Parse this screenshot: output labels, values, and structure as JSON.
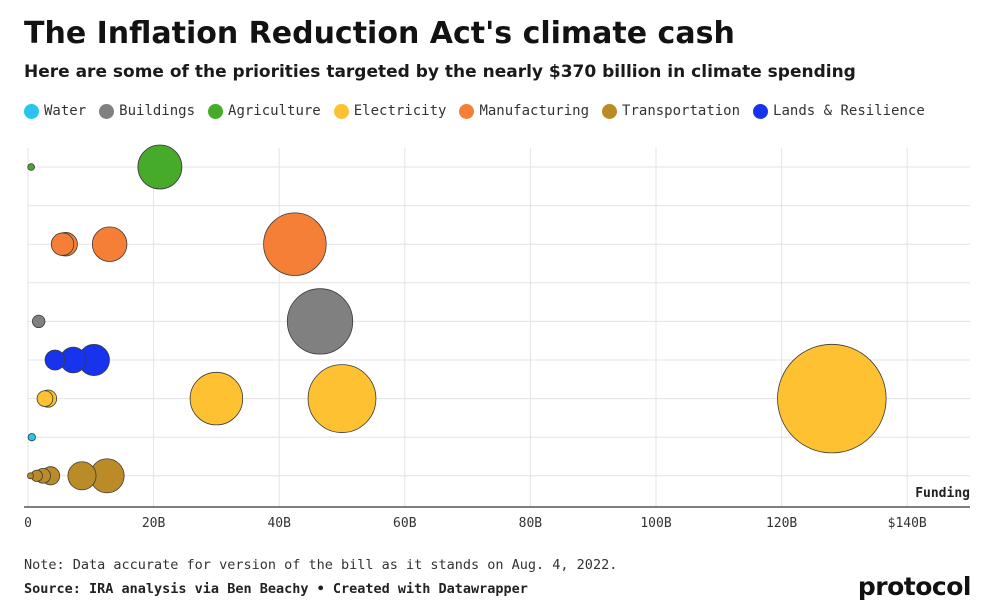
{
  "header": {
    "title": "The Inflation Reduction Act's climate cash",
    "subtitle": "Here are some of the priorities targeted by the nearly $370 billion in climate spending"
  },
  "footer": {
    "note": "Note: Data accurate for version of the bill as it stands on Aug. 4, 2022.",
    "source": "Source: IRA analysis via Ben Beachy • Created with Datawrapper",
    "brand": "protocol"
  },
  "colors": {
    "Water": "#29c4ef",
    "Buildings": "#808080",
    "Agriculture": "#46ab2b",
    "Electricity": "#fdc131",
    "Manufacturing": "#f57f37",
    "Transportation": "#bb8b27",
    "Lands & Resilience": "#1733ee"
  },
  "chart_data": {
    "type": "scatter",
    "subtype": "bubble",
    "title": "The Inflation Reduction Act's climate cash",
    "xlabel": "Funding",
    "ylabel": "",
    "xlim": [
      0,
      150
    ],
    "x_unit": "billion USD",
    "xticks": [
      {
        "value": 0,
        "label": "0"
      },
      {
        "value": 20,
        "label": "20B"
      },
      {
        "value": 40,
        "label": "40B"
      },
      {
        "value": 60,
        "label": "60B"
      },
      {
        "value": 80,
        "label": "80B"
      },
      {
        "value": 100,
        "label": "100B"
      },
      {
        "value": 120,
        "label": "120B"
      },
      {
        "value": 140,
        "label": "$140B"
      }
    ],
    "legend": [
      "Water",
      "Buildings",
      "Agriculture",
      "Electricity",
      "Manufacturing",
      "Transportation",
      "Lands & Resilience"
    ],
    "rows": [
      "Agriculture",
      "",
      "Manufacturing",
      "",
      "Buildings",
      "Lands & Resilience",
      "Electricity",
      "Water",
      "Transportation"
    ],
    "series": [
      {
        "name": "Agriculture",
        "values": [
          0.5,
          21
        ]
      },
      {
        "name": "Manufacturing",
        "values": [
          5.5,
          6,
          13,
          42.5
        ]
      },
      {
        "name": "Buildings",
        "values": [
          1.7,
          46.5
        ]
      },
      {
        "name": "Lands & Resilience",
        "values": [
          4.3,
          7.2,
          10.5
        ]
      },
      {
        "name": "Electricity",
        "values": [
          2.7,
          3.2,
          30,
          50,
          128
        ]
      },
      {
        "name": "Water",
        "values": [
          0.6
        ]
      },
      {
        "name": "Transportation",
        "values": [
          0.4,
          1.4,
          2.4,
          3.6,
          8.6,
          12.6
        ]
      }
    ]
  }
}
